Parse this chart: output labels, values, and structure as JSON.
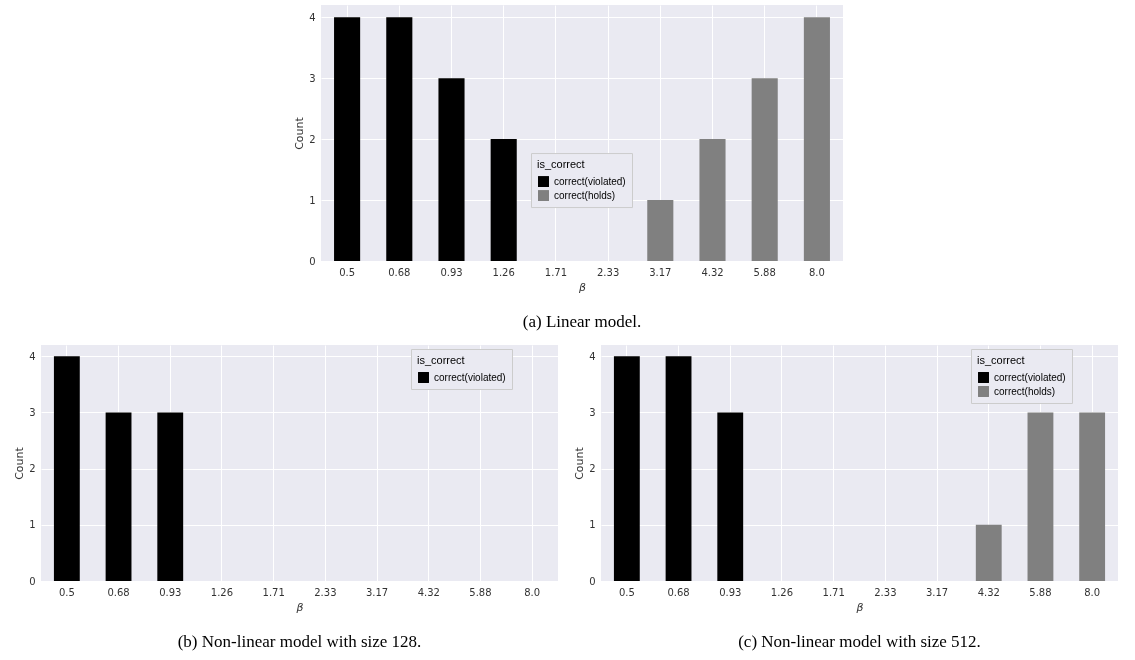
{
  "chart_data": [
    {
      "type": "bar",
      "annotations": [
        "(a) Linear model."
      ],
      "xlabel": "β",
      "ylabel": "Count",
      "legend_title": "is_correct",
      "legend": "bottom",
      "grid": true,
      "categories": [
        "0.5",
        "0.68",
        "0.93",
        "1.26",
        "1.71",
        "2.33",
        "3.17",
        "4.32",
        "5.88",
        "8.0"
      ],
      "ylim": [
        0,
        4.2
      ],
      "yticks": [
        0,
        1,
        2,
        3,
        4
      ],
      "series": [
        {
          "name": "correct(violated)",
          "color": "#000000",
          "values": [
            4,
            4,
            3,
            2,
            null,
            null,
            null,
            null,
            null,
            null
          ]
        },
        {
          "name": "correct(holds)",
          "color": "#808080",
          "values": [
            null,
            null,
            null,
            null,
            null,
            null,
            1,
            2,
            3,
            4
          ]
        }
      ]
    },
    {
      "type": "bar",
      "annotations": [
        "(b) Non-linear model with size 128."
      ],
      "xlabel": "β",
      "ylabel": "Count",
      "legend_title": "is_correct",
      "legend": "top right",
      "grid": true,
      "categories": [
        "0.5",
        "0.68",
        "0.93",
        "1.26",
        "1.71",
        "2.33",
        "3.17",
        "4.32",
        "5.88",
        "8.0"
      ],
      "ylim": [
        0,
        4.2
      ],
      "yticks": [
        0,
        1,
        2,
        3,
        4
      ],
      "series": [
        {
          "name": "correct(violated)",
          "color": "#000000",
          "values": [
            4,
            3,
            3,
            null,
            null,
            null,
            null,
            null,
            null,
            null
          ]
        }
      ]
    },
    {
      "type": "bar",
      "annotations": [
        "(c) Non-linear model with size 512."
      ],
      "xlabel": "β",
      "ylabel": "Count",
      "legend_title": "is_correct",
      "legend": "top right",
      "grid": true,
      "categories": [
        "0.5",
        "0.68",
        "0.93",
        "1.26",
        "1.71",
        "2.33",
        "3.17",
        "4.32",
        "5.88",
        "8.0"
      ],
      "ylim": [
        0,
        4.2
      ],
      "yticks": [
        0,
        1,
        2,
        3,
        4
      ],
      "series": [
        {
          "name": "correct(violated)",
          "color": "#000000",
          "values": [
            4,
            4,
            3,
            null,
            null,
            null,
            null,
            null,
            null,
            null
          ]
        },
        {
          "name": "correct(holds)",
          "color": "#808080",
          "values": [
            null,
            null,
            null,
            null,
            null,
            null,
            null,
            1,
            3,
            3
          ]
        }
      ]
    }
  ]
}
